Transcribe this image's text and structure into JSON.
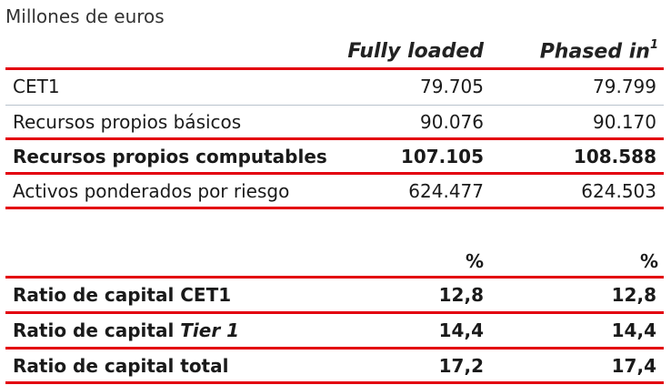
{
  "caption": "Millones de euros",
  "columns": {
    "fully_loaded": "Fully loaded",
    "phased_in": "Phased in",
    "phased_in_note": "1"
  },
  "table1": [
    {
      "label": "CET1",
      "fully": "79.705",
      "phased": "79.799"
    },
    {
      "label": "Recursos propios básicos",
      "fully": "90.076",
      "phased": "90.170"
    },
    {
      "label": "Recursos propios computables",
      "fully": "107.105",
      "phased": "108.588"
    },
    {
      "label": "Activos ponderados por riesgo",
      "fully": "624.477",
      "phased": "624.503"
    }
  ],
  "table2_unit": "%",
  "table2": [
    {
      "label": "Ratio de capital CET1",
      "fully": "12,8",
      "phased": "12,8"
    },
    {
      "label_prefix": "Ratio de capital ",
      "label_italic": "Tier 1",
      "fully": "14,4",
      "phased": "14,4"
    },
    {
      "label": "Ratio de capital total",
      "fully": "17,2",
      "phased": "17,4"
    }
  ],
  "colors": {
    "accent_red": "#e3000f",
    "separator_grey": "#b9c3cd"
  }
}
